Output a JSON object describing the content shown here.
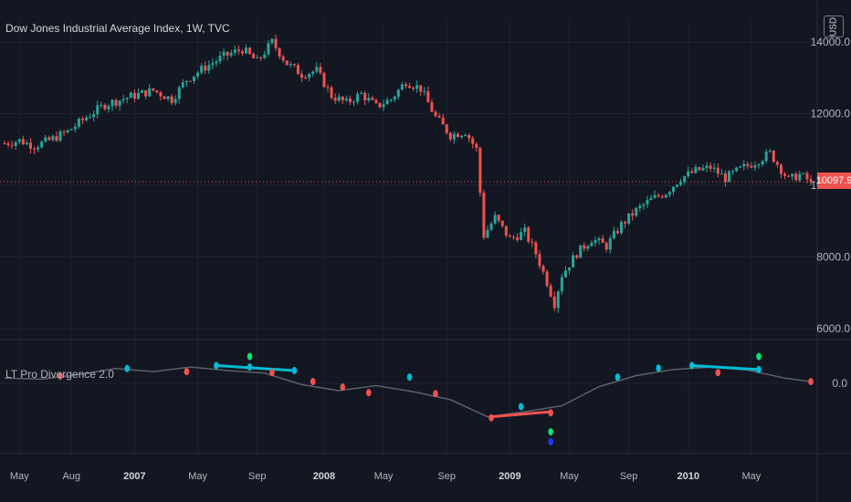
{
  "header": {
    "symbol_title": "Dow Jones Industrial Average Index, 1W, TVC",
    "currency": "USD"
  },
  "indicator": {
    "title": "LT Pro Divergence 2.0"
  },
  "colors": {
    "background": "#131722",
    "up": "#26a69a",
    "down": "#ef5350",
    "grid": "#1f2331",
    "axis_text": "#b2b5be",
    "osc_line": "#5d606b",
    "bull_div": "#00bcd4",
    "bear_div": "#ef5350",
    "signal_green": "#00e676",
    "signal_blue": "#1e3aff"
  },
  "chart_data": [
    {
      "type": "candlestick",
      "title": "Dow Jones Industrial Average Index, 1W, TVC",
      "x_ticks": [
        "May",
        "Aug",
        "2007",
        "May",
        "Sep",
        "2008",
        "May",
        "Sep",
        "2009",
        "May",
        "Sep",
        "2010",
        "May"
      ],
      "y_ticks": [
        "14000.0",
        "12000.0",
        "10000.0",
        "8000.0",
        "6000.0"
      ],
      "ylim": [
        5800,
        14600
      ],
      "last_price": "10097.9",
      "close_path": [
        [
          0,
          11170
        ],
        [
          4,
          11250
        ],
        [
          8,
          11100
        ],
        [
          12,
          11250
        ],
        [
          17,
          11500
        ],
        [
          22,
          11900
        ],
        [
          27,
          12250
        ],
        [
          33,
          12450
        ],
        [
          40,
          12650
        ],
        [
          45,
          12400
        ],
        [
          49,
          12950
        ],
        [
          54,
          13300
        ],
        [
          59,
          13600
        ],
        [
          64,
          13800
        ],
        [
          68,
          13450
        ],
        [
          72,
          14000
        ],
        [
          76,
          13400
        ],
        [
          80,
          13100
        ],
        [
          84,
          13200
        ],
        [
          88,
          12500
        ],
        [
          92,
          12300
        ],
        [
          96,
          12550
        ],
        [
          100,
          12200
        ],
        [
          104,
          12400
        ],
        [
          108,
          12900
        ],
        [
          112,
          12700
        ],
        [
          116,
          11900
        ],
        [
          120,
          11400
        ],
        [
          124,
          11500
        ],
        [
          127,
          11000
        ],
        [
          129,
          8600
        ],
        [
          132,
          9100
        ],
        [
          136,
          8500
        ],
        [
          140,
          8700
        ],
        [
          143,
          8100
        ],
        [
          146,
          7300
        ],
        [
          148,
          6700
        ],
        [
          150,
          7500
        ],
        [
          154,
          8100
        ],
        [
          158,
          8500
        ],
        [
          162,
          8300
        ],
        [
          166,
          8900
        ],
        [
          170,
          9300
        ],
        [
          174,
          9600
        ],
        [
          178,
          9800
        ],
        [
          182,
          10200
        ],
        [
          186,
          10400
        ],
        [
          190,
          10500
        ],
        [
          194,
          10200
        ],
        [
          198,
          10450
        ],
        [
          202,
          10650
        ],
        [
          206,
          10900
        ],
        [
          208,
          10600
        ],
        [
          211,
          10150
        ],
        [
          214,
          10300
        ],
        [
          217,
          10097.9
        ]
      ]
    },
    {
      "type": "line",
      "title": "LT Pro Divergence 2.0",
      "y_ticks": [
        "0.0"
      ],
      "ylim": [
        -1.4,
        0.6
      ],
      "x": [
        0,
        10,
        20,
        30,
        40,
        50,
        60,
        70,
        80,
        90,
        100,
        110,
        120,
        130,
        140,
        150,
        160,
        170,
        180,
        190,
        200,
        210,
        217
      ],
      "values": [
        0.05,
        0.03,
        0.12,
        0.24,
        0.18,
        0.27,
        0.2,
        0.15,
        -0.08,
        -0.2,
        -0.1,
        -0.22,
        -0.38,
        -0.72,
        -0.62,
        -0.5,
        -0.12,
        0.1,
        0.22,
        0.27,
        0.21,
        0.05,
        -0.02
      ],
      "divergences": [
        {
          "kind": "bullish",
          "x": [
            57,
            78
          ],
          "y": [
            0.3,
            0.2
          ]
        },
        {
          "kind": "bearish",
          "x": [
            131,
            147
          ],
          "y": [
            -0.72,
            -0.62
          ]
        },
        {
          "kind": "bullish",
          "x": [
            185,
            203
          ],
          "y": [
            0.3,
            0.22
          ]
        }
      ],
      "bull_markers": [
        [
          33,
          0.24
        ],
        [
          57,
          0.3
        ],
        [
          66,
          0.27
        ],
        [
          78,
          0.2
        ],
        [
          109,
          0.07
        ],
        [
          139,
          -0.52
        ],
        [
          165,
          0.07
        ],
        [
          176,
          0.25
        ],
        [
          185,
          0.3
        ],
        [
          203,
          0.22
        ]
      ],
      "bear_markers": [
        [
          15,
          0.09
        ],
        [
          49,
          0.18
        ],
        [
          72,
          0.16
        ],
        [
          83,
          -0.02
        ],
        [
          91,
          -0.13
        ],
        [
          98,
          -0.24
        ],
        [
          116,
          -0.26
        ],
        [
          131,
          -0.74
        ],
        [
          147,
          -0.64
        ],
        [
          192,
          0.16
        ],
        [
          217,
          -0.02
        ]
      ],
      "signal_markers": [
        [
          66,
          0.48,
          "green"
        ],
        [
          147,
          -1.02,
          "green"
        ],
        [
          147,
          -1.22,
          "blue"
        ],
        [
          203,
          0.48,
          "green"
        ]
      ]
    }
  ]
}
